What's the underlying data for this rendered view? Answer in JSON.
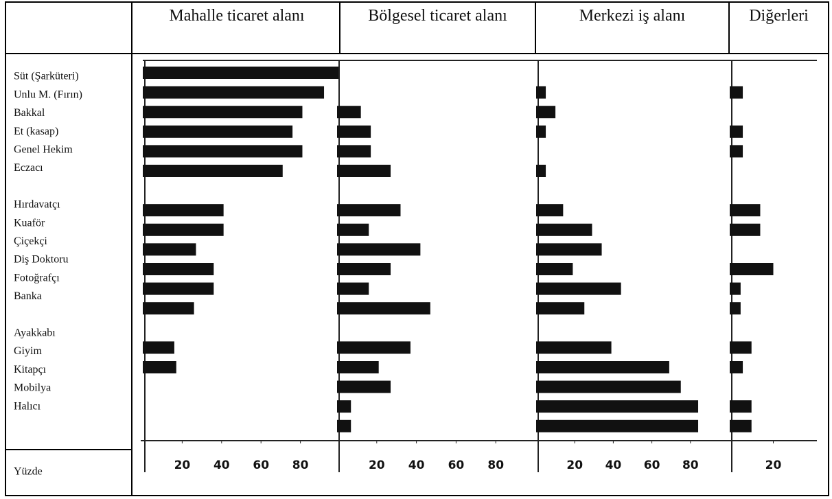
{
  "categories": [
    "Süt (Şarküteri)",
    "Unlu M. (Fırın)",
    "Bakkal",
    "Et (kasap)",
    "Genel Hekim",
    "Eczacı",
    "Hırdavatçı",
    "Kuaför",
    "Çiçekçi",
    "Diş Doktoru",
    "Fotoğrafçı",
    "Banka",
    "Ayakkabı",
    "Giyim",
    "Kitapçı",
    "Mobilya",
    "Halıcı"
  ],
  "row_label": "Yüzde",
  "chart_data": [
    {
      "type": "bar",
      "orientation": "horizontal",
      "title": "Mahalle ticaret alanı",
      "color": "#111111",
      "values": [
        100,
        92,
        81,
        76,
        81,
        71,
        41,
        41,
        27,
        36,
        36,
        26,
        16,
        17,
        null,
        null,
        null
      ],
      "xlim": [
        0,
        100
      ],
      "xticks": [
        20,
        40,
        60,
        80
      ]
    },
    {
      "type": "bar",
      "orientation": "horizontal",
      "title": "Bölgesel ticaret alanı",
      "color": "#111111",
      "values": [
        null,
        null,
        12,
        17,
        17,
        27,
        32,
        16,
        42,
        27,
        16,
        47,
        37,
        21,
        27,
        7,
        7
      ],
      "xlim": [
        0,
        100
      ],
      "xticks": [
        20,
        40,
        60,
        80
      ]
    },
    {
      "type": "bar",
      "orientation": "horizontal",
      "title": "Merkezi iş alanı",
      "color": "#111111",
      "values": [
        null,
        5,
        10,
        5,
        null,
        5,
        14,
        29,
        34,
        19,
        44,
        25,
        39,
        69,
        75,
        84,
        84
      ],
      "xlim": [
        0,
        100
      ],
      "xticks": [
        20,
        40,
        60,
        80
      ]
    },
    {
      "type": "bar",
      "orientation": "horizontal",
      "title": "Diğerleri",
      "color": "#111111",
      "values": [
        null,
        6,
        null,
        6,
        6,
        null,
        14,
        14,
        null,
        20,
        5,
        5,
        10,
        6,
        null,
        10,
        10
      ],
      "xlim": [
        0,
        40
      ],
      "xticks": [
        20
      ]
    }
  ]
}
